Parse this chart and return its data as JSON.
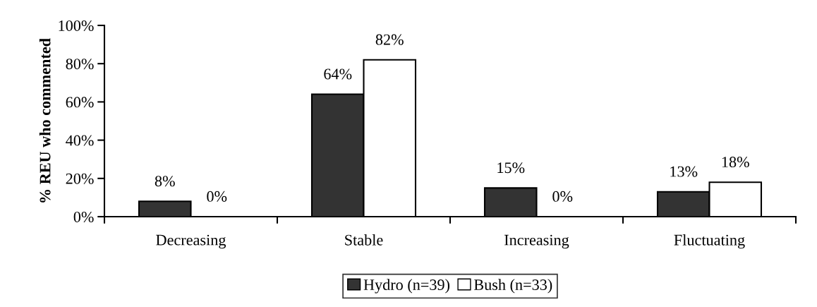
{
  "chart_data": {
    "type": "bar",
    "ylabel": "% REU who commented",
    "categories": [
      "Decreasing",
      "Stable",
      "Increasing",
      "Fluctuating"
    ],
    "series": [
      {
        "name": "Hydro (n=39)",
        "color": "#333333",
        "values": [
          8,
          64,
          15,
          13
        ],
        "value_labels": [
          "8%",
          "64%",
          "15%",
          "13%"
        ]
      },
      {
        "name": "Bush (n=33)",
        "color": "#ffffff",
        "values": [
          0,
          82,
          0,
          18
        ],
        "value_labels": [
          "0%",
          "82%",
          "0%",
          "18%"
        ]
      }
    ],
    "ylim": [
      0,
      100
    ],
    "yticks": [
      {
        "value": 0,
        "label": "0%"
      },
      {
        "value": 20,
        "label": "20%"
      },
      {
        "value": 40,
        "label": "40%"
      },
      {
        "value": 60,
        "label": "60%"
      },
      {
        "value": 80,
        "label": "80%"
      },
      {
        "value": 100,
        "label": "100%"
      }
    ],
    "grid": false,
    "legend": "bottom"
  }
}
